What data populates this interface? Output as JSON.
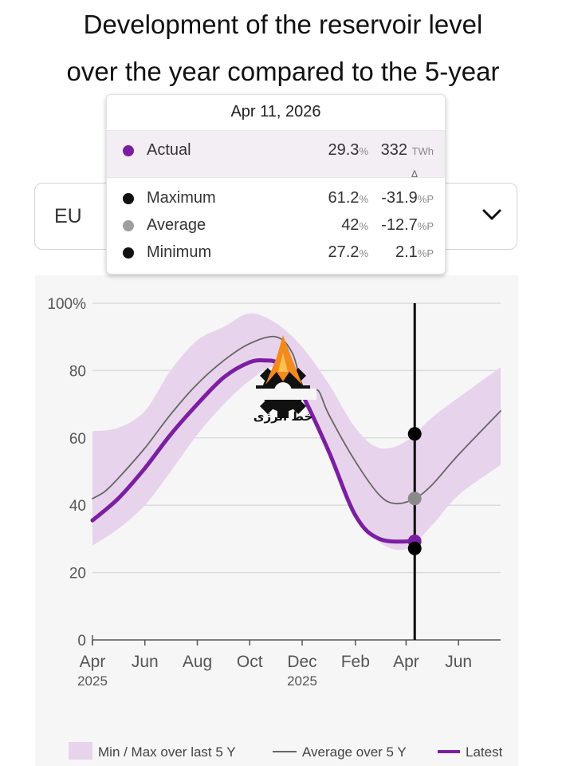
{
  "title_lines": [
    "Development of the reservoir level",
    "over the year compared to the 5-year"
  ],
  "region_select": {
    "value": "EU",
    "icon": "chevron-down-icon"
  },
  "tooltip": {
    "date": "Apr 11, 2026",
    "delta_symbol": "Δ",
    "rows": [
      {
        "name": "Actual",
        "pct": "29.3",
        "pct_unit": "%",
        "abs": "332",
        "abs_unit": "TWh",
        "color": "#7b1fa2"
      },
      {
        "name": "Maximum",
        "pct": "61.2",
        "pct_unit": "%",
        "abs": "-31.9",
        "abs_unit": "%P",
        "color": "#111111"
      },
      {
        "name": "Average",
        "pct": "42",
        "pct_unit": "%",
        "abs": "-12.7",
        "abs_unit": "%P",
        "color": "#9e9e9e"
      },
      {
        "name": "Minimum",
        "pct": "27.2",
        "pct_unit": "%",
        "abs": "2.1",
        "abs_unit": "%P",
        "color": "#111111"
      }
    ]
  },
  "watermark": {
    "text": "خط انرژی"
  },
  "chart_data": {
    "type": "area",
    "ylim": [
      0,
      100
    ],
    "y_ticks": [
      "0",
      "20",
      "40",
      "60",
      "80",
      "100%"
    ],
    "y_tick_values": [
      0,
      20,
      40,
      60,
      80,
      100
    ],
    "x_range": [
      "2025-04-01",
      "2026-07-20"
    ],
    "x_ticks": [
      {
        "label": "Apr",
        "date": "2025-04-01",
        "year": "2025"
      },
      {
        "label": "Jun",
        "date": "2025-06-01",
        "year": ""
      },
      {
        "label": "Aug",
        "date": "2025-08-01",
        "year": ""
      },
      {
        "label": "Oct",
        "date": "2025-10-01",
        "year": ""
      },
      {
        "label": "Dec",
        "date": "2025-12-01",
        "year": "2025"
      },
      {
        "label": "Feb",
        "date": "2026-02-01",
        "year": ""
      },
      {
        "label": "Apr",
        "date": "2026-04-01",
        "year": ""
      },
      {
        "label": "Jun",
        "date": "2026-06-01",
        "year": ""
      }
    ],
    "grid": true,
    "legend_position": "bottom",
    "cursor_date": "2026-04-11",
    "cursor_points": [
      {
        "series": "Maximum",
        "value": 61.2,
        "color": "#000000"
      },
      {
        "series": "Average",
        "value": 42,
        "color": "#8a8a8a"
      },
      {
        "series": "Actual",
        "value": 29.3,
        "color": "#7b1fa2"
      },
      {
        "series": "Minimum",
        "value": 27.2,
        "color": "#000000"
      }
    ],
    "band": {
      "name": "Min / Max over last 5 Y",
      "color": "#e8d3ec",
      "x": [
        "2025-04-01",
        "2025-05-01",
        "2025-06-01",
        "2025-07-01",
        "2025-08-01",
        "2025-09-01",
        "2025-10-01",
        "2025-11-01",
        "2025-12-01",
        "2026-01-01",
        "2026-02-01",
        "2026-03-01",
        "2026-04-01",
        "2026-05-01",
        "2026-06-01",
        "2026-07-20"
      ],
      "min": [
        28,
        33,
        40,
        50,
        61,
        70,
        77,
        81,
        73,
        55,
        38,
        29,
        27,
        34,
        43,
        52
      ],
      "max": [
        62,
        63,
        68,
        80,
        89,
        93,
        97,
        94,
        87,
        76,
        63,
        57,
        59,
        66,
        72,
        81
      ]
    },
    "series": [
      {
        "name": "Average over 5 Y",
        "color": "#666666",
        "x": [
          "2025-04-01",
          "2025-04-15",
          "2025-05-01",
          "2025-06-01",
          "2025-07-01",
          "2025-08-01",
          "2025-09-01",
          "2025-10-01",
          "2025-11-01",
          "2025-11-20",
          "2025-12-01",
          "2025-12-10",
          "2025-12-20",
          "2026-01-01",
          "2026-02-01",
          "2026-03-01",
          "2026-03-20",
          "2026-04-11",
          "2026-05-01",
          "2026-06-01",
          "2026-07-20"
        ],
        "values": [
          42,
          44,
          48,
          57,
          67,
          76,
          83,
          88,
          90,
          85,
          75,
          73,
          74,
          67,
          53,
          43,
          40.5,
          42,
          46,
          55,
          68
        ]
      },
      {
        "name": "Latest",
        "color": "#7b1fa2",
        "x": [
          "2025-04-01",
          "2025-05-01",
          "2025-06-01",
          "2025-07-01",
          "2025-08-01",
          "2025-09-01",
          "2025-10-01",
          "2025-10-20",
          "2025-11-01",
          "2025-11-15",
          "2025-12-01",
          "2026-01-01",
          "2026-02-01",
          "2026-03-01",
          "2026-04-11"
        ],
        "values": [
          35.5,
          42,
          51,
          61,
          70,
          78,
          82.5,
          83,
          82.5,
          80,
          73,
          56,
          37,
          30,
          29.3
        ]
      }
    ]
  }
}
